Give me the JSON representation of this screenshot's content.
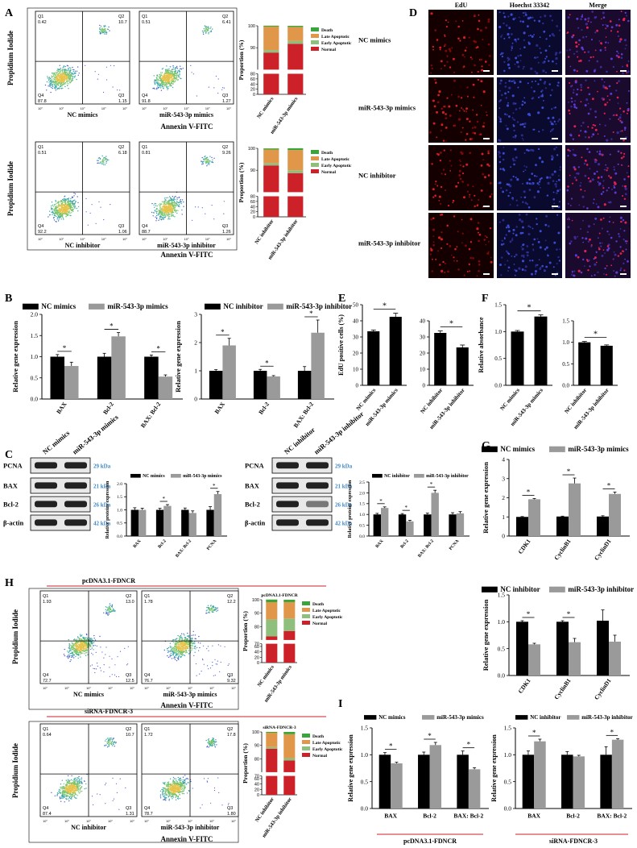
{
  "panels": {
    "A": {
      "label": "A",
      "ylabel": "Propidium Iodide",
      "xlabel": "Annexin V-FITC",
      "flow": [
        {
          "title": "NC mimics",
          "q1": "Q1",
          "q1v": "0.42",
          "q2": "Q2",
          "q2v": "10.7",
          "q3": "Q3",
          "q3v": "1.15",
          "q4": "Q4",
          "q4v": "87.8"
        },
        {
          "title": "miR-543-3p mimics",
          "q1": "Q1",
          "q1v": "0.51",
          "q2": "Q2",
          "q2v": "6.41",
          "q3": "Q3",
          "q3v": "1.27",
          "q4": "Q4",
          "q4v": "91.8"
        },
        {
          "title": "NC inhibitor",
          "q1": "Q1",
          "q1v": "0.51",
          "q2": "Q2",
          "q2v": "6.18",
          "q3": "Q3",
          "q3v": "1.06",
          "q4": "Q4",
          "q4v": "92.2"
        },
        {
          "title": "miR-543-3p inhibitor",
          "q1": "Q1",
          "q1v": "0.81",
          "q2": "Q2",
          "q2v": "9.26",
          "q3": "Q3",
          "q3v": "1.26",
          "q4": "Q4",
          "q4v": "88.7"
        }
      ]
    },
    "D": {
      "label": "D",
      "cols": [
        "EdU",
        "Hoechst 33342",
        "Merge"
      ],
      "rows": [
        "NC mimics",
        "miR-543-3p mimics",
        "NC inhibitor",
        "miR-543-3p inhibitor"
      ]
    },
    "B": {
      "label": "B"
    },
    "C": {
      "label": "C",
      "lanes1": [
        "NC mimics",
        "miR-543-3p mimics"
      ],
      "lanes2": [
        "NC inhibitor",
        "miR-543-3p inhibitor"
      ],
      "proteins": [
        "PCNA",
        "BAX",
        "Bcl-2",
        "β-actin"
      ],
      "kda": [
        "29 kDa",
        "21 kDa",
        "26 kDa",
        "42 kDa"
      ]
    },
    "E": {
      "label": "E"
    },
    "F": {
      "label": "F"
    },
    "G": {
      "label": "G"
    },
    "H": {
      "label": "H",
      "header1": "pcDNA3.1-FDNCR",
      "header2": "siRNA-FDNCR-3",
      "ylabel": "Propidium Iodide",
      "xlabel": "Annexin V-FITC",
      "flow": [
        {
          "title": "NC mimics",
          "q1": "Q1",
          "q1v": "1.93",
          "q2": "Q2",
          "q2v": "13.0",
          "q3": "Q3",
          "q3v": "12.5",
          "q4": "Q4",
          "q4v": "72.7"
        },
        {
          "title": "miR-543-3p mimics",
          "q1": "Q1",
          "q1v": "1.78",
          "q2": "Q2",
          "q2v": "12.2",
          "q3": "Q3",
          "q3v": "9.32",
          "q4": "Q4",
          "q4v": "76.7"
        },
        {
          "title": "NC inhibitor",
          "q1": "Q1",
          "q1v": "0.64",
          "q2": "Q2",
          "q2v": "10.7",
          "q3": "Q3",
          "q3v": "1.31",
          "q4": "Q4",
          "q4v": "87.4"
        },
        {
          "title": "miR-543-3p inhibitor",
          "q1": "Q1",
          "q1v": "1.72",
          "q2": "Q2",
          "q2v": "17.8",
          "q3": "Q3",
          "q3v": "1.80",
          "q4": "Q4",
          "q4v": "78.7"
        }
      ]
    },
    "I": {
      "label": "I",
      "under1": "pcDNA3.1-FDNCR",
      "under2": "siRNA-FDNCR-3"
    }
  },
  "colors": {
    "normal": "#cc2128",
    "early": "#8fbf7d",
    "late": "#e0974a",
    "death": "#3aa53a",
    "black": "#000000",
    "gray": "#9a9a9a",
    "blueText": "#3a86c8",
    "red": "#cc2128"
  },
  "chart_data": [
    {
      "id": "A-top",
      "type": "bar",
      "stacked": true,
      "ylabel": "Proportion (%)",
      "categories": [
        "NC mimics",
        "miR-543-3p mimics"
      ],
      "legend": [
        "Death",
        "Late Apoptotic",
        "Early Apoptotic",
        "Normal"
      ],
      "series": [
        {
          "name": "Normal",
          "values": [
            87.8,
            91.8
          ]
        },
        {
          "name": "Early Apoptotic",
          "values": [
            1.15,
            1.27
          ]
        },
        {
          "name": "Late Apoptotic",
          "values": [
            10.7,
            6.41
          ]
        },
        {
          "name": "Death",
          "values": [
            0.42,
            0.51
          ]
        }
      ],
      "yticks": [
        0,
        20,
        40,
        60,
        80,
        90,
        100
      ]
    },
    {
      "id": "A-bottom",
      "type": "bar",
      "stacked": true,
      "ylabel": "Proportion (%)",
      "categories": [
        "NC inhibitor",
        "miR-543-3p inhibitor"
      ],
      "legend": [
        "Death",
        "Late Apoptotic",
        "Early Apoptotic",
        "Normal"
      ],
      "series": [
        {
          "name": "Normal",
          "values": [
            92.2,
            88.7
          ]
        },
        {
          "name": "Early Apoptotic",
          "values": [
            1.06,
            1.26
          ]
        },
        {
          "name": "Late Apoptotic",
          "values": [
            6.18,
            9.26
          ]
        },
        {
          "name": "Death",
          "values": [
            0.51,
            0.81
          ]
        }
      ],
      "yticks": [
        0,
        20,
        40,
        60,
        80,
        90,
        100
      ]
    },
    {
      "id": "B-left",
      "type": "bar",
      "ylabel": "Relative gene expression",
      "ylim": [
        0,
        2.0
      ],
      "yticks": [
        "0.0",
        "0.5",
        "1.0",
        "1.5",
        "2.0"
      ],
      "categories": [
        "BAX",
        "Bcl-2",
        "BAX: Bcl-2"
      ],
      "series": [
        {
          "name": "NC mimics",
          "values": [
            1.0,
            1.0,
            1.0
          ],
          "err": [
            0.05,
            0.08,
            0.04
          ]
        },
        {
          "name": "miR-543-3p mimics",
          "values": [
            0.78,
            1.48,
            0.53
          ],
          "err": [
            0.09,
            0.09,
            0.04
          ]
        }
      ],
      "sig": [
        "*",
        "*",
        "*"
      ]
    },
    {
      "id": "B-right",
      "type": "bar",
      "ylabel": "Relative gene expression",
      "ylim": [
        0,
        3
      ],
      "yticks": [
        "0",
        "1",
        "2",
        "3"
      ],
      "categories": [
        "BAX",
        "Bcl-2",
        "BAX: Bcl-2"
      ],
      "series": [
        {
          "name": "NC inhibitor",
          "values": [
            1.0,
            1.0,
            1.0
          ],
          "err": [
            0.04,
            0.05,
            0.15
          ]
        },
        {
          "name": "miR-543-3p inhibitor",
          "values": [
            1.9,
            0.8,
            2.35
          ],
          "err": [
            0.25,
            0.03,
            0.45
          ]
        }
      ],
      "sig": [
        "*",
        "*",
        "*"
      ]
    },
    {
      "id": "E-left",
      "type": "bar",
      "ylabel": "EdU positive cells (%)",
      "ylim": [
        0,
        50
      ],
      "yticks": [
        "0",
        "10",
        "20",
        "30",
        "40",
        "50"
      ],
      "categories": [
        "NC mimics",
        "miR-543-3p mimics"
      ],
      "values": [
        33.5,
        42.5
      ],
      "err": [
        0.8,
        2.2
      ],
      "colors": [
        "#000000",
        "#000000"
      ],
      "sig": "*"
    },
    {
      "id": "E-right",
      "type": "bar",
      "ylim": [
        0,
        40
      ],
      "yticks": [
        "0",
        "10",
        "20",
        "30",
        "40"
      ],
      "categories": [
        "NC inhibitor",
        "miR-543-3p inhibitor"
      ],
      "values": [
        32.5,
        23.5
      ],
      "err": [
        1.2,
        1.5
      ],
      "colors": [
        "#000000",
        "#000000"
      ],
      "sig": "*"
    },
    {
      "id": "F-left",
      "type": "bar",
      "ylabel": "Relative absorbance",
      "ylim": [
        0,
        1.5
      ],
      "yticks": [
        "0.0",
        "0.5",
        "1.0",
        "1.5"
      ],
      "categories": [
        "NC mimics",
        "miR-543-3p mimics"
      ],
      "values": [
        1.0,
        1.28
      ],
      "err": [
        0.02,
        0.03
      ],
      "colors": [
        "#000000",
        "#000000"
      ],
      "sig": "*"
    },
    {
      "id": "F-right",
      "type": "bar",
      "ylim": [
        0,
        1.5
      ],
      "yticks": [
        "0.0",
        "0.5",
        "1.0",
        "1.5"
      ],
      "categories": [
        "NC inhibitor",
        "miR-543-3p inhibitor"
      ],
      "values": [
        1.0,
        0.92
      ],
      "err": [
        0.02,
        0.02
      ],
      "colors": [
        "#000000",
        "#000000"
      ],
      "sig": "*"
    },
    {
      "id": "C-left",
      "type": "bar",
      "ylabel": "Relative proteins expression",
      "ylim": [
        0,
        2.0
      ],
      "yticks": [
        "0.0",
        "0.5",
        "1.0",
        "1.5",
        "2.0"
      ],
      "categories": [
        "BAX",
        "Bcl-2",
        "BAX: Bcl-2",
        "PCNA"
      ],
      "series": [
        {
          "name": "NC mimics",
          "values": [
            1.0,
            1.0,
            1.0,
            1.0
          ],
          "err": [
            0.08,
            0.06,
            0.07,
            0.12
          ]
        },
        {
          "name": "miR-543-3p mimics",
          "values": [
            1.0,
            1.15,
            0.88,
            1.6
          ],
          "err": [
            0.06,
            0.05,
            0.08,
            0.1
          ]
        }
      ],
      "sig": [
        "",
        "*",
        "",
        "*"
      ]
    },
    {
      "id": "C-right",
      "type": "bar",
      "ylabel": "Relative proteins expression",
      "ylim": [
        0,
        2.5
      ],
      "yticks": [
        "0.0",
        "0.5",
        "1.0",
        "1.5",
        "2.0",
        "2.5"
      ],
      "categories": [
        "BAX",
        "Bcl-2",
        "BAX: Bcl-2",
        "PCNA"
      ],
      "series": [
        {
          "name": "NC inhibitor",
          "values": [
            1.0,
            1.0,
            1.0,
            1.0
          ],
          "err": [
            0.05,
            0.04,
            0.06,
            0.08
          ]
        },
        {
          "name": "miR-543-3p inhibitor",
          "values": [
            1.3,
            0.68,
            2.0,
            1.05
          ],
          "err": [
            0.05,
            0.05,
            0.12,
            0.08
          ]
        }
      ],
      "sig": [
        "*",
        "*",
        "*",
        ""
      ]
    },
    {
      "id": "G-top",
      "type": "bar",
      "ylabel": "Relative gene expression",
      "ylim": [
        0,
        4
      ],
      "yticks": [
        "0",
        "1",
        "2",
        "3",
        "4"
      ],
      "categories": [
        "CDK1",
        "CyclinB1",
        "CyclinD1"
      ],
      "series": [
        {
          "name": "NC mimics",
          "values": [
            1.0,
            1.02,
            1.02
          ],
          "err": [
            0.02,
            0.02,
            0.04
          ]
        },
        {
          "name": "miR-543-3p mimics",
          "values": [
            1.92,
            2.75,
            2.2
          ],
          "err": [
            0.04,
            0.28,
            0.1
          ]
        }
      ],
      "sig": [
        "*",
        "*",
        "*"
      ]
    },
    {
      "id": "G-bottom",
      "type": "bar",
      "ylabel": "Relative gene expression",
      "ylim": [
        0,
        1.5
      ],
      "yticks": [
        "0.0",
        "0.5",
        "1.0",
        "1.5"
      ],
      "categories": [
        "CDK1",
        "CyclinB1",
        "CyclinD1"
      ],
      "series": [
        {
          "name": "NC inhibitor",
          "values": [
            1.0,
            1.0,
            1.02
          ],
          "err": [
            0.02,
            0.02,
            0.2
          ]
        },
        {
          "name": "miR-543-3p inhibitor",
          "values": [
            0.58,
            0.62,
            0.63
          ],
          "err": [
            0.02,
            0.07,
            0.12
          ]
        }
      ],
      "sig": [
        "*",
        "*",
        ""
      ]
    },
    {
      "id": "H-top",
      "type": "bar",
      "stacked": true,
      "ylabel": "Proportion (%)",
      "title": "pcDNA3.1-FDNCR",
      "categories": [
        "NC mimics",
        "miR-543-3p mimics"
      ],
      "legend": [
        "Death",
        "Late Apoptotic",
        "Early Apoptotic",
        "Normal"
      ],
      "series": [
        {
          "name": "Normal",
          "values": [
            72.7,
            76.7
          ]
        },
        {
          "name": "Early Apoptotic",
          "values": [
            12.5,
            9.32
          ]
        },
        {
          "name": "Late Apoptotic",
          "values": [
            13.0,
            12.2
          ]
        },
        {
          "name": "Death",
          "values": [
            1.93,
            1.78
          ]
        }
      ],
      "yticks": [
        0,
        20,
        40,
        60,
        70,
        80,
        90,
        100
      ]
    },
    {
      "id": "H-bottom",
      "type": "bar",
      "stacked": true,
      "ylabel": "Proportion (%)",
      "title": "siRNA-FDNCR-3",
      "categories": [
        "NC inhibitor",
        "miR-543-3p inhibitor"
      ],
      "legend": [
        "Death",
        "Late Apoptotic",
        "Early Apoptotic",
        "Normal"
      ],
      "series": [
        {
          "name": "Normal",
          "values": [
            87.4,
            78.7
          ]
        },
        {
          "name": "Early Apoptotic",
          "values": [
            1.31,
            1.8
          ]
        },
        {
          "name": "Late Apoptotic",
          "values": [
            10.7,
            17.8
          ]
        },
        {
          "name": "Death",
          "values": [
            0.64,
            1.72
          ]
        }
      ],
      "yticks": [
        0,
        20,
        40,
        60,
        70,
        80,
        90,
        100
      ]
    },
    {
      "id": "I-left",
      "type": "bar",
      "ylabel": "Relative gene expression",
      "ylim": [
        0,
        1.5
      ],
      "yticks": [
        "0.0",
        "0.5",
        "1.0",
        "1.5"
      ],
      "categories": [
        "BAX",
        "Bcl-2",
        "BAX: Bcl-2"
      ],
      "series": [
        {
          "name": "NC mimics",
          "values": [
            1.0,
            1.0,
            1.0
          ],
          "err": [
            0.04,
            0.05,
            0.07
          ]
        },
        {
          "name": "miR-543-3p mimics",
          "values": [
            0.84,
            1.18,
            0.73
          ],
          "err": [
            0.02,
            0.05,
            0.03
          ]
        }
      ],
      "sig": [
        "*",
        "*",
        "*"
      ]
    },
    {
      "id": "I-right",
      "type": "bar",
      "ylabel": "Relative gene expression",
      "ylim": [
        0,
        1.5
      ],
      "yticks": [
        "0.0",
        "0.5",
        "1.0",
        "1.5"
      ],
      "categories": [
        "BAX",
        "Bcl-2",
        "BAX: Bcl-2"
      ],
      "series": [
        {
          "name": "NC inhibitor",
          "values": [
            1.0,
            1.0,
            1.0
          ],
          "err": [
            0.07,
            0.06,
            0.15
          ]
        },
        {
          "name": "miR-543-3p inhibitor",
          "values": [
            1.25,
            0.97,
            1.28
          ],
          "err": [
            0.04,
            0.02,
            0.02
          ]
        }
      ],
      "sig": [
        "*",
        "",
        "*"
      ]
    }
  ]
}
